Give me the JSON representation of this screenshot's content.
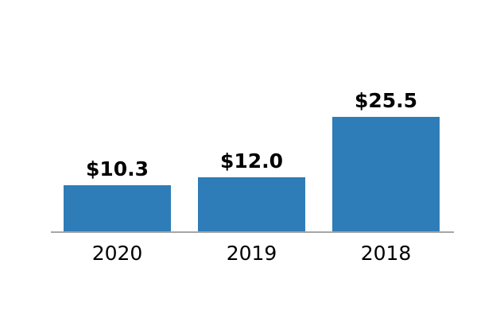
{
  "chart_data": {
    "type": "bar",
    "categories": [
      "2020",
      "2019",
      "2018"
    ],
    "values": [
      10.3,
      12.0,
      25.5
    ],
    "value_labels": [
      "$10.3",
      "$12.0",
      "$25.5"
    ],
    "title": "",
    "xlabel": "",
    "ylabel": "",
    "ylim": [
      0,
      26
    ],
    "grid": false,
    "legend": "none",
    "axis_visible": "x-only",
    "bar_color": "#2e7db8",
    "axis_line_color": "#a6a6a6",
    "label_color": "#000000",
    "background_color": "#ffffff"
  }
}
